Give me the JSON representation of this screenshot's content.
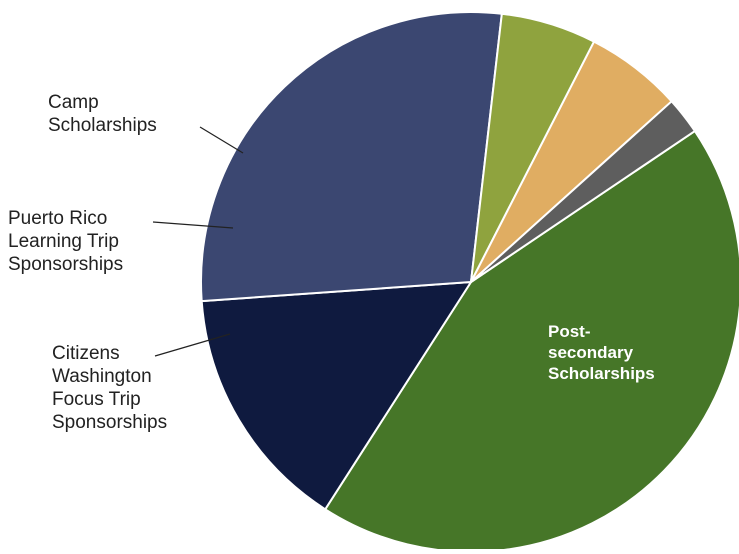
{
  "chart_data": {
    "type": "pie",
    "title": "",
    "legend": "none",
    "start_angle_deg": 326,
    "direction": "clockwise",
    "slices": [
      {
        "label": "",
        "value": 45.0,
        "color": "#467628"
      },
      {
        "label": "Post-\nsecondary\nScholarships",
        "value": 15.3,
        "color": "#0f1a3f"
      },
      {
        "label": "",
        "value": 28.9,
        "color": "#3b4771"
      },
      {
        "label": "Citizens\nWashington\nFocus Trip\nSponsorships",
        "value": 5.9,
        "color": "#8fa33e"
      },
      {
        "label": "Puerto Rico\nLearning Trip\nSponsorships",
        "value": 6.0,
        "color": "#e0ad62"
      },
      {
        "label": "Camp\nScholarships",
        "value": 2.3,
        "color": "#5e5e5e"
      }
    ]
  }
}
